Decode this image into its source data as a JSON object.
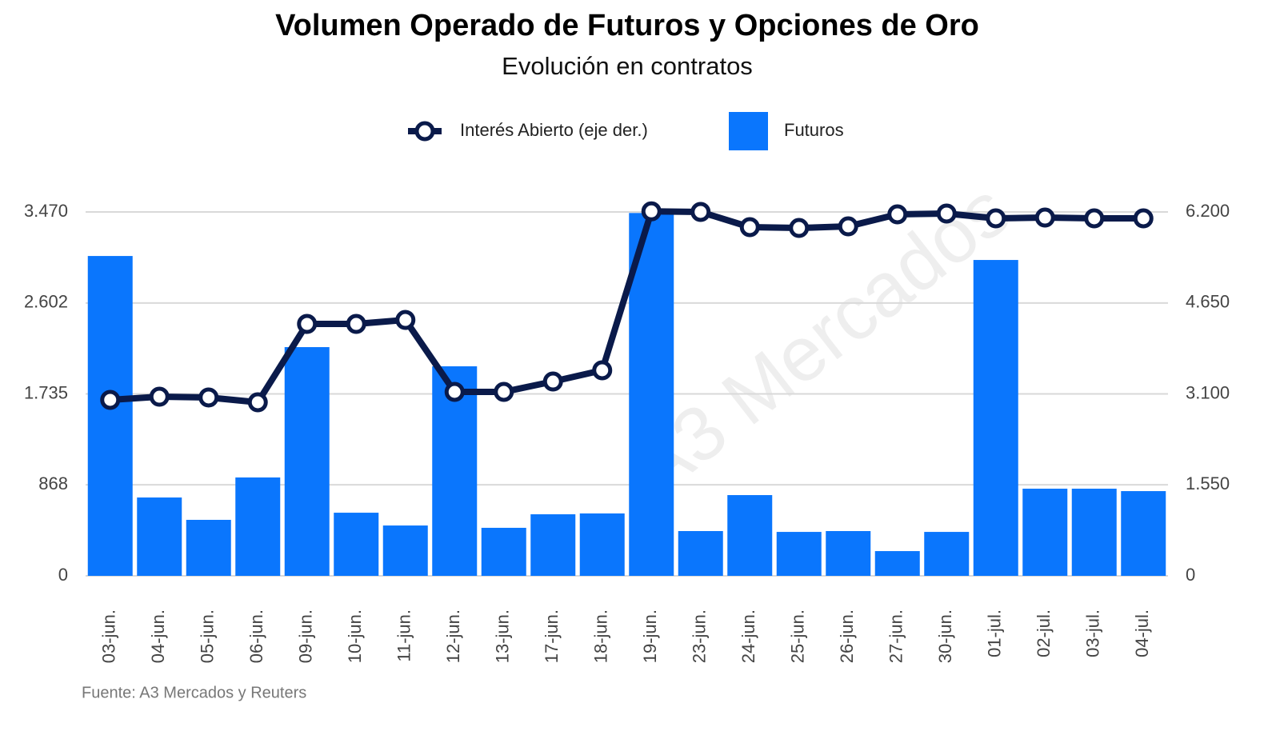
{
  "chart_data": {
    "type": "bar_line",
    "title": "Volumen Operado de Futuros y Opciones de Oro",
    "subtitle": "Evolución en contratos",
    "watermark": "A3 Mercados",
    "source": "Fuente: A3 Mercados y Reuters",
    "categories": [
      "03-jun.",
      "04-jun.",
      "05-jun.",
      "06-jun.",
      "09-jun.",
      "10-jun.",
      "11-jun.",
      "12-jun.",
      "13-jun.",
      "17-jun.",
      "18-jun.",
      "19-jun.",
      "23-jun.",
      "24-jun.",
      "25-jun.",
      "26-jun.",
      "27-jun.",
      "30-jun.",
      "01-jul.",
      "02-jul.",
      "03-jul.",
      "04-jul."
    ],
    "series": [
      {
        "name": "Interés Abierto (eje der.)",
        "type": "line",
        "axis": "y2",
        "color": "#0a1a4a",
        "values": [
          2998,
          3052,
          3039,
          2957,
          4292,
          4292,
          4360,
          3134,
          3134,
          3311,
          3502,
          6210,
          6200,
          5941,
          5927,
          5954,
          6159,
          6173,
          6091,
          6104,
          6091,
          6091
        ]
      },
      {
        "name": "Futuros",
        "type": "bar",
        "color": "#0a76fd",
        "values": [
          3050,
          747,
          534,
          938,
          2181,
          602,
          480,
          1998,
          458,
          587,
          595,
          3460,
          427,
          770,
          419,
          427,
          236,
          419,
          3012,
          831,
          831,
          808
        ]
      }
    ],
    "ylim": [
      0,
      3470
    ],
    "yticks": [
      0,
      {
        "value": 868,
        "label": "868"
      },
      {
        "value": 1735,
        "label": "1.735"
      },
      {
        "value": 2602,
        "label": "2.602"
      },
      {
        "value": 3470,
        "label": "3.470"
      }
    ],
    "y2lim": [
      0,
      6200
    ],
    "y2ticks": [
      0,
      {
        "value": 1550,
        "label": "1.550"
      },
      {
        "value": 3100,
        "label": "3.100"
      },
      {
        "value": 4650,
        "label": "4.650"
      },
      {
        "value": 6200,
        "label": "6.200"
      }
    ],
    "grid": true
  }
}
